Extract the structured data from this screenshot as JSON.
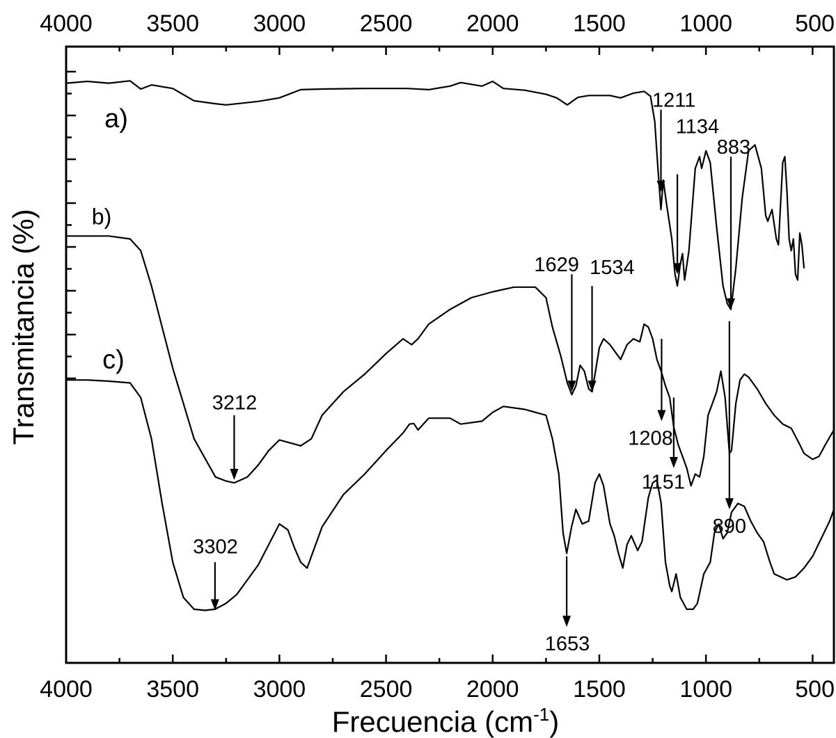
{
  "chart_data": {
    "type": "line",
    "xlabel": "Frecuencia (cm",
    "xlabel_sup": "-1",
    "xlabel_end": ")",
    "ylabel": "Transmitancia (%)",
    "xlim": [
      4000,
      400
    ],
    "x_reversed": true,
    "grid": false,
    "x_ticks": [
      4000,
      3500,
      3000,
      2500,
      2000,
      1500,
      1000,
      500
    ],
    "x_tick_labels": [
      "4000",
      "3500",
      "3000",
      "2500",
      "2000",
      "1500",
      "1000",
      "500"
    ],
    "series": [
      {
        "name": "a)",
        "points": [
          [
            4000,
            96.5
          ],
          [
            3900,
            96.8
          ],
          [
            3800,
            96.5
          ],
          [
            3700,
            96.9
          ],
          [
            3650,
            95.5
          ],
          [
            3600,
            96.2
          ],
          [
            3500,
            95.6
          ],
          [
            3400,
            93.5
          ],
          [
            3300,
            93
          ],
          [
            3250,
            92.8
          ],
          [
            3100,
            93.4
          ],
          [
            3000,
            94
          ],
          [
            2900,
            95.4
          ],
          [
            2800,
            95.5
          ],
          [
            2600,
            95.6
          ],
          [
            2400,
            95.6
          ],
          [
            2300,
            95.4
          ],
          [
            2200,
            96
          ],
          [
            2150,
            96.6
          ],
          [
            2050,
            96
          ],
          [
            2000,
            96.8
          ],
          [
            1950,
            95.6
          ],
          [
            1850,
            95.3
          ],
          [
            1750,
            94.6
          ],
          [
            1700,
            94
          ],
          [
            1650,
            92.8
          ],
          [
            1600,
            94.1
          ],
          [
            1550,
            94.4
          ],
          [
            1450,
            94.4
          ],
          [
            1400,
            94
          ],
          [
            1340,
            94.8
          ],
          [
            1290,
            95.1
          ],
          [
            1260,
            94.3
          ],
          [
            1240,
            90
          ],
          [
            1225,
            82
          ],
          [
            1211,
            75
          ],
          [
            1200,
            80
          ],
          [
            1185,
            76
          ],
          [
            1160,
            70
          ],
          [
            1145,
            64
          ],
          [
            1134,
            62
          ],
          [
            1120,
            65.8
          ],
          [
            1110,
            67.5
          ],
          [
            1100,
            63
          ],
          [
            1080,
            68
          ],
          [
            1050,
            82
          ],
          [
            1030,
            84
          ],
          [
            1020,
            82
          ],
          [
            1000,
            85
          ],
          [
            980,
            83
          ],
          [
            950,
            72
          ],
          [
            920,
            62
          ],
          [
            900,
            59
          ],
          [
            883,
            58
          ],
          [
            860,
            65
          ],
          [
            830,
            77
          ],
          [
            800,
            85
          ],
          [
            770,
            86
          ],
          [
            740,
            82
          ],
          [
            720,
            74
          ],
          [
            710,
            73
          ],
          [
            690,
            75
          ],
          [
            670,
            70
          ],
          [
            660,
            69
          ],
          [
            640,
            83
          ],
          [
            630,
            84
          ],
          [
            620,
            78
          ],
          [
            610,
            70
          ],
          [
            600,
            68
          ],
          [
            590,
            70
          ],
          [
            580,
            64
          ],
          [
            570,
            63
          ],
          [
            560,
            71
          ],
          [
            550,
            69
          ],
          [
            540,
            65
          ]
        ]
      },
      {
        "name": "b)",
        "points": [
          [
            4000,
            70.5
          ],
          [
            3800,
            70.5
          ],
          [
            3700,
            70
          ],
          [
            3650,
            68
          ],
          [
            3600,
            62
          ],
          [
            3500,
            48
          ],
          [
            3400,
            36
          ],
          [
            3300,
            29.5
          ],
          [
            3250,
            28.8
          ],
          [
            3212,
            28.5
          ],
          [
            3150,
            29.5
          ],
          [
            3100,
            31.5
          ],
          [
            3050,
            34
          ],
          [
            3000,
            35.8
          ],
          [
            2950,
            35.3
          ],
          [
            2900,
            34.8
          ],
          [
            2850,
            36
          ],
          [
            2800,
            40
          ],
          [
            2700,
            44
          ],
          [
            2600,
            47
          ],
          [
            2500,
            50.5
          ],
          [
            2420,
            53
          ],
          [
            2380,
            52
          ],
          [
            2350,
            53
          ],
          [
            2300,
            55.5
          ],
          [
            2200,
            58
          ],
          [
            2100,
            60
          ],
          [
            2000,
            61
          ],
          [
            1900,
            61.8
          ],
          [
            1800,
            61.8
          ],
          [
            1750,
            60
          ],
          [
            1720,
            55
          ],
          [
            1680,
            50
          ],
          [
            1650,
            45.5
          ],
          [
            1629,
            43.5
          ],
          [
            1610,
            45
          ],
          [
            1590,
            48.5
          ],
          [
            1570,
            47.5
          ],
          [
            1550,
            44.5
          ],
          [
            1534,
            44
          ],
          [
            1520,
            47
          ],
          [
            1500,
            51.5
          ],
          [
            1480,
            53
          ],
          [
            1450,
            52
          ],
          [
            1420,
            50.5
          ],
          [
            1400,
            49.5
          ],
          [
            1370,
            52
          ],
          [
            1340,
            53
          ],
          [
            1310,
            52.5
          ],
          [
            1290,
            55.5
          ],
          [
            1270,
            55
          ],
          [
            1250,
            53
          ],
          [
            1230,
            49.5
          ],
          [
            1210,
            47.5
          ],
          [
            1190,
            45
          ],
          [
            1170,
            43
          ],
          [
            1151,
            38
          ],
          [
            1130,
            35
          ],
          [
            1110,
            33
          ],
          [
            1090,
            31
          ],
          [
            1070,
            28
          ],
          [
            1050,
            30
          ],
          [
            1030,
            29.5
          ],
          [
            1010,
            33
          ],
          [
            990,
            40
          ],
          [
            970,
            42
          ],
          [
            950,
            44
          ],
          [
            930,
            47.5
          ],
          [
            910,
            43
          ],
          [
            890,
            33.5
          ],
          [
            880,
            34
          ],
          [
            860,
            42
          ],
          [
            840,
            46
          ],
          [
            820,
            47
          ],
          [
            800,
            46.5
          ],
          [
            760,
            44.5
          ],
          [
            720,
            42
          ],
          [
            680,
            40
          ],
          [
            640,
            38.5
          ],
          [
            600,
            37.8
          ],
          [
            560,
            35
          ],
          [
            540,
            33.5
          ],
          [
            500,
            32.5
          ],
          [
            470,
            33
          ],
          [
            440,
            35
          ],
          [
            400,
            37.5
          ]
        ]
      },
      {
        "name": "c)",
        "points": [
          [
            4000,
            46
          ],
          [
            3900,
            46
          ],
          [
            3800,
            45.8
          ],
          [
            3700,
            45.5
          ],
          [
            3650,
            43
          ],
          [
            3600,
            36
          ],
          [
            3550,
            25
          ],
          [
            3500,
            15
          ],
          [
            3450,
            9
          ],
          [
            3400,
            7
          ],
          [
            3350,
            6.8
          ],
          [
            3302,
            7
          ],
          [
            3250,
            8
          ],
          [
            3200,
            9.5
          ],
          [
            3150,
            12
          ],
          [
            3100,
            14.5
          ],
          [
            3050,
            18
          ],
          [
            3000,
            21.5
          ],
          [
            2960,
            20.5
          ],
          [
            2930,
            17.5
          ],
          [
            2900,
            15
          ],
          [
            2870,
            14
          ],
          [
            2850,
            16
          ],
          [
            2800,
            21
          ],
          [
            2700,
            26.5
          ],
          [
            2600,
            30
          ],
          [
            2500,
            34
          ],
          [
            2420,
            37
          ],
          [
            2390,
            38.5
          ],
          [
            2370,
            38.6
          ],
          [
            2350,
            37.5
          ],
          [
            2300,
            39.5
          ],
          [
            2200,
            39.5
          ],
          [
            2150,
            38.5
          ],
          [
            2050,
            39
          ],
          [
            2000,
            40.5
          ],
          [
            1950,
            41.5
          ],
          [
            1850,
            41
          ],
          [
            1750,
            40
          ],
          [
            1720,
            36
          ],
          [
            1690,
            30
          ],
          [
            1670,
            20
          ],
          [
            1653,
            16.5
          ],
          [
            1630,
            21
          ],
          [
            1610,
            24
          ],
          [
            1580,
            21.5
          ],
          [
            1550,
            22
          ],
          [
            1520,
            28.5
          ],
          [
            1500,
            30
          ],
          [
            1480,
            28
          ],
          [
            1450,
            21.5
          ],
          [
            1430,
            19.5
          ],
          [
            1410,
            16.5
          ],
          [
            1390,
            14
          ],
          [
            1370,
            18
          ],
          [
            1350,
            19.5
          ],
          [
            1320,
            17
          ],
          [
            1300,
            18.5
          ],
          [
            1270,
            26
          ],
          [
            1250,
            28.5
          ],
          [
            1230,
            29
          ],
          [
            1210,
            25
          ],
          [
            1190,
            15
          ],
          [
            1170,
            11
          ],
          [
            1160,
            10
          ],
          [
            1140,
            13
          ],
          [
            1120,
            9
          ],
          [
            1090,
            7
          ],
          [
            1060,
            7
          ],
          [
            1040,
            8
          ],
          [
            1010,
            13
          ],
          [
            980,
            15
          ],
          [
            960,
            20
          ],
          [
            940,
            21.5
          ],
          [
            920,
            19
          ],
          [
            900,
            20
          ],
          [
            880,
            23.5
          ],
          [
            850,
            25
          ],
          [
            820,
            24.5
          ],
          [
            790,
            22
          ],
          [
            760,
            20
          ],
          [
            730,
            18.5
          ],
          [
            700,
            15
          ],
          [
            680,
            13
          ],
          [
            650,
            12.5
          ],
          [
            620,
            12
          ],
          [
            580,
            12.5
          ],
          [
            540,
            14
          ],
          [
            500,
            16
          ],
          [
            460,
            19
          ],
          [
            420,
            22
          ],
          [
            400,
            24
          ]
        ]
      }
    ],
    "series_labels": [
      {
        "text": "a)",
        "x": 3820,
        "y": 89,
        "size": "large"
      },
      {
        "text": "b)",
        "x": 3880,
        "y": 72.5,
        "size": "small"
      },
      {
        "text": "c)",
        "x": 3830,
        "y": 48,
        "size": "large"
      }
    ],
    "annotations": [
      {
        "label": "1211",
        "x": 1211,
        "y_from": 92,
        "y_to": 78,
        "label_x": 1150,
        "label_y": 92.5
      },
      {
        "label": "1134",
        "x": 1134,
        "y_from": 81,
        "y_to": 64,
        "label_x": 1040,
        "label_y": 88
      },
      {
        "label": "883",
        "x": 883,
        "y_from": 84,
        "y_to": 58,
        "label_x": 870,
        "label_y": 84.5
      },
      {
        "label": "1629",
        "x": 1629,
        "y_from": 64,
        "y_to": 44,
        "label_x": 1700,
        "label_y": 64.5
      },
      {
        "label": "1534",
        "x": 1534,
        "y_from": 62,
        "y_to": 44,
        "label_x": 1440,
        "label_y": 64
      },
      {
        "label": "3212",
        "x": 3212,
        "y_from": 40,
        "y_to": 29,
        "label_x": 3210,
        "label_y": 41
      },
      {
        "label": "1208",
        "x": 1208,
        "y_from": 53,
        "y_to": 39,
        "label_x": 1260,
        "label_y": 35
      },
      {
        "label": "1151",
        "x": 1151,
        "y_from": 43,
        "y_to": 31,
        "label_x": 1200,
        "label_y": 27.5
      },
      {
        "label": "890",
        "x": 890,
        "y_from": 56,
        "y_to": 24,
        "label_x": 890,
        "label_y": 20
      },
      {
        "label": "3302",
        "x": 3302,
        "y_from": 15,
        "y_to": 6.8,
        "label_x": 3300,
        "label_y": 16.5
      },
      {
        "label": "1653",
        "x": 1653,
        "y_from": 16,
        "y_to": 4,
        "label_x": 1650,
        "label_y": 0
      }
    ]
  }
}
